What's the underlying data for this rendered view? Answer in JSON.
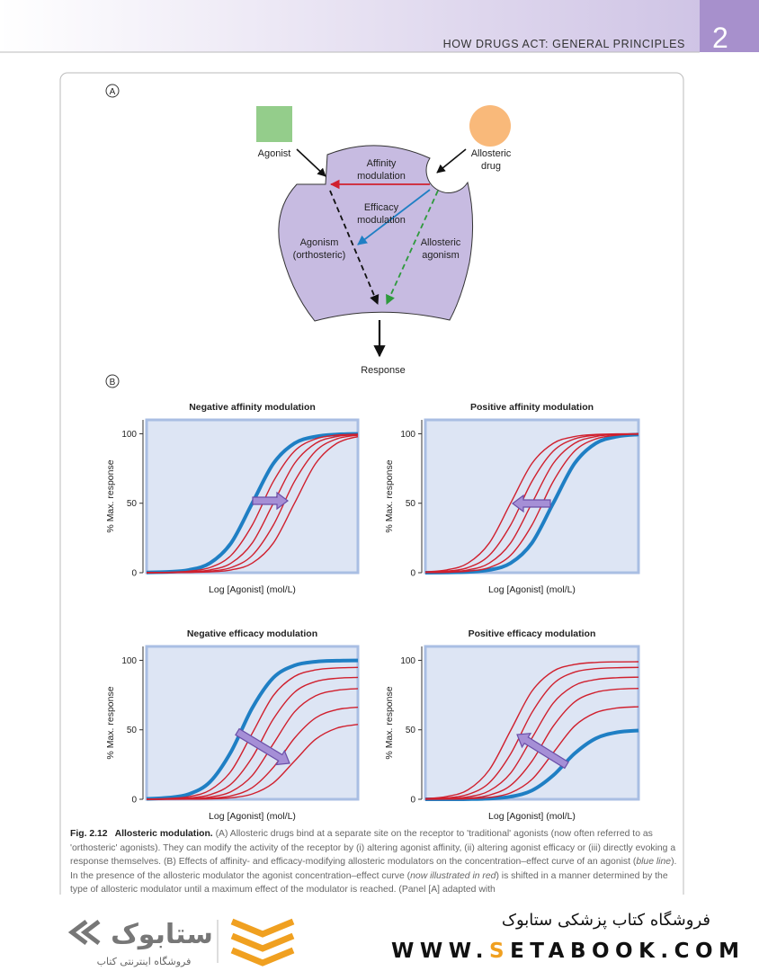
{
  "header": {
    "running_title": "HOW DRUGS ACT: GENERAL PRINCIPLES",
    "chapter": "2"
  },
  "panel_labels": [
    "A",
    "B"
  ],
  "diagram": {
    "agonist": "Agonist",
    "allosteric_drug": [
      "Allosteric",
      "drug"
    ],
    "affinity_modulation": [
      "Affinity",
      "modulation"
    ],
    "efficacy_modulation": [
      "Efficacy",
      "modulation"
    ],
    "orthosteric_agonism": [
      "Agonism",
      "(orthosteric)"
    ],
    "allosteric_agonism": [
      "Allosteric",
      "agonism"
    ],
    "response": "Response"
  },
  "chart_data": [
    {
      "type": "line",
      "title": "Negative affinity modulation",
      "x_label": "Log [Agonist] (mol/L)",
      "y_label": "% Max. response",
      "categories": [
        null,
        null,
        null,
        null,
        null,
        null,
        null,
        null,
        null,
        null,
        null
      ],
      "ylim": [
        0,
        110
      ],
      "yticks": [
        0,
        50,
        100
      ],
      "series": [
        {
          "color": "#1f7fc4",
          "values": [
            0.2,
            0.6,
            2.0,
            6.9,
            21.4,
            50,
            78.6,
            93.1,
            98.0,
            99.5,
            99.9
          ]
        },
        {
          "color": "#d0202e",
          "values": [
            0.1,
            0.3,
            1.1,
            3.7,
            12.5,
            34.3,
            65.7,
            87.5,
            96.3,
            99.0,
            99.7
          ]
        },
        {
          "color": "#d0202e",
          "values": [
            0.0,
            0.2,
            0.6,
            2.0,
            6.9,
            21.4,
            50,
            78.6,
            93.1,
            98.0,
            99.5
          ]
        },
        {
          "color": "#d0202e",
          "values": [
            0.0,
            0.1,
            0.3,
            1.1,
            3.7,
            12.5,
            34.3,
            65.7,
            87.5,
            96.3,
            99.0
          ]
        },
        {
          "color": "#d0202e",
          "values": [
            0.0,
            0.0,
            0.2,
            0.6,
            2.0,
            6.9,
            21.4,
            50,
            78.6,
            93.1,
            98.0
          ]
        }
      ]
    },
    {
      "type": "line",
      "title": "Positive affinity modulation",
      "x_label": "Log [Agonist] (mol/L)",
      "y_label": "% Max. response",
      "categories": [
        null,
        null,
        null,
        null,
        null,
        null,
        null,
        null,
        null,
        null,
        null
      ],
      "ylim": [
        0,
        110
      ],
      "yticks": [
        0,
        50,
        100
      ],
      "series": [
        {
          "color": "#1f7fc4",
          "values": [
            0.0,
            0.2,
            0.6,
            2.0,
            6.9,
            21.4,
            50,
            78.6,
            93.1,
            98.0,
            99.5
          ]
        },
        {
          "color": "#d0202e",
          "values": [
            0.1,
            0.3,
            1.1,
            3.7,
            12.5,
            34.3,
            65.7,
            87.5,
            96.3,
            99.0,
            99.7
          ]
        },
        {
          "color": "#d0202e",
          "values": [
            0.2,
            0.6,
            2.0,
            6.9,
            21.4,
            50,
            78.6,
            93.1,
            98.0,
            99.5,
            99.9
          ]
        },
        {
          "color": "#d0202e",
          "values": [
            0.3,
            1.1,
            3.7,
            12.5,
            34.3,
            65.7,
            87.5,
            96.3,
            99.0,
            99.7,
            99.9
          ]
        },
        {
          "color": "#d0202e",
          "values": [
            0.6,
            2.0,
            6.9,
            21.4,
            50,
            78.6,
            93.1,
            98.0,
            99.5,
            99.9,
            100.0
          ]
        }
      ]
    },
    {
      "type": "line",
      "title": "Negative efficacy modulation",
      "x_label": "Log [Agonist] (mol/L)",
      "y_label": "% Max. response",
      "categories": [
        null,
        null,
        null,
        null,
        null,
        null,
        null,
        null,
        null,
        null,
        null
      ],
      "ylim": [
        0,
        110
      ],
      "yticks": [
        0,
        50,
        100
      ],
      "series": [
        {
          "color": "#1f7fc4",
          "values": [
            0.3,
            1.1,
            3.7,
            12.5,
            34.3,
            65.7,
            87.5,
            96.3,
            99.0,
            99.7,
            99.9
          ]
        },
        {
          "color": "#d0202e",
          "values": [
            0.1,
            0.5,
            1.9,
            6.6,
            20.3,
            47.5,
            74.7,
            88.4,
            93.1,
            94.5,
            94.9
          ]
        },
        {
          "color": "#d0202e",
          "values": [
            0.1,
            0.3,
            0.9,
            3.3,
            11.0,
            30.2,
            57.8,
            77.0,
            84.7,
            87.1,
            87.7
          ]
        },
        {
          "color": "#d0202e",
          "values": [
            0.0,
            0.1,
            0.4,
            1.6,
            5.5,
            17.1,
            40.0,
            62.9,
            74.5,
            78.4,
            79.6
          ]
        },
        {
          "color": "#d0202e",
          "values": [
            0.0,
            0.1,
            0.2,
            0.7,
            2.5,
            8.4,
            23.0,
            44.0,
            58.6,
            64.5,
            66.3
          ]
        },
        {
          "color": "#d0202e",
          "values": [
            0.0,
            0.0,
            0.1,
            0.3,
            1.1,
            3.8,
            11.8,
            27.5,
            43.2,
            51.2,
            53.9
          ]
        }
      ]
    },
    {
      "type": "line",
      "title": "Positive efficacy modulation",
      "x_label": "Log [Agonist] (mol/L)",
      "y_label": "% Max. response",
      "categories": [
        null,
        null,
        null,
        null,
        null,
        null,
        null,
        null,
        null,
        null,
        null
      ],
      "ylim": [
        0,
        110
      ],
      "yticks": [
        0,
        50,
        100
      ],
      "series": [
        {
          "color": "#1f7fc4",
          "values": [
            0.0,
            0.0,
            0.1,
            0.5,
            1.9,
            6.3,
            17.2,
            32.9,
            43.8,
            48.2,
            49.5
          ]
        },
        {
          "color": "#d0202e",
          "values": [
            0.0,
            0.1,
            0.4,
            1.3,
            4.6,
            14.3,
            33.5,
            52.7,
            62.4,
            65.7,
            66.6
          ]
        },
        {
          "color": "#d0202e",
          "values": [
            0.1,
            0.2,
            0.8,
            3.0,
            10.0,
            27.4,
            52.6,
            70.0,
            77.0,
            79.2,
            79.8
          ]
        },
        {
          "color": "#d0202e",
          "values": [
            0.1,
            0.5,
            1.7,
            6.1,
            18.8,
            44.0,
            69.2,
            81.9,
            86.2,
            87.5,
            87.9
          ]
        },
        {
          "color": "#d0202e",
          "values": [
            0.3,
            1.0,
            3.5,
            11.9,
            32.6,
            62.4,
            83.1,
            91.5,
            94.0,
            94.7,
            94.9
          ]
        },
        {
          "color": "#d0202e",
          "values": [
            0.5,
            2.0,
            6.8,
            21.2,
            49.5,
            77.8,
            92.2,
            97.0,
            98.5,
            98.9,
            99.0
          ]
        }
      ]
    }
  ],
  "caption": {
    "label": "Fig. 2.12",
    "title": "Allosteric modulation.",
    "runs": [
      "(A) Allosteric drugs bind at a separate site on the receptor to 'traditional' agonists (now often referred to as 'orthosteric' agonists). They can modify the activity of the receptor by (i) altering agonist affinity, (ii) altering agonist efficacy or (iii) directly evoking a response themselves. (B) Effects of affinity- and efficacy-modifying allosteric modulators on the concentration–effect curve of an agonist (",
      "blue line",
      "). In the presence of the allosteric modulator the agonist concentration–effect curve (",
      "now illustrated in red",
      ") is shifted in a manner determined by the type of allosteric modulator until a maximum effect of the modulator is reached. (Panel [A] adapted with"
    ]
  },
  "footer": {
    "logo_text": "ستابوک",
    "logo_subtitle": "فروشگاه اینترنتی کتاب",
    "store_name": "فروشگاه کتاب پزشکی ستابوک",
    "website": [
      "WWW.",
      "S",
      "ETABOOK.COM"
    ]
  }
}
